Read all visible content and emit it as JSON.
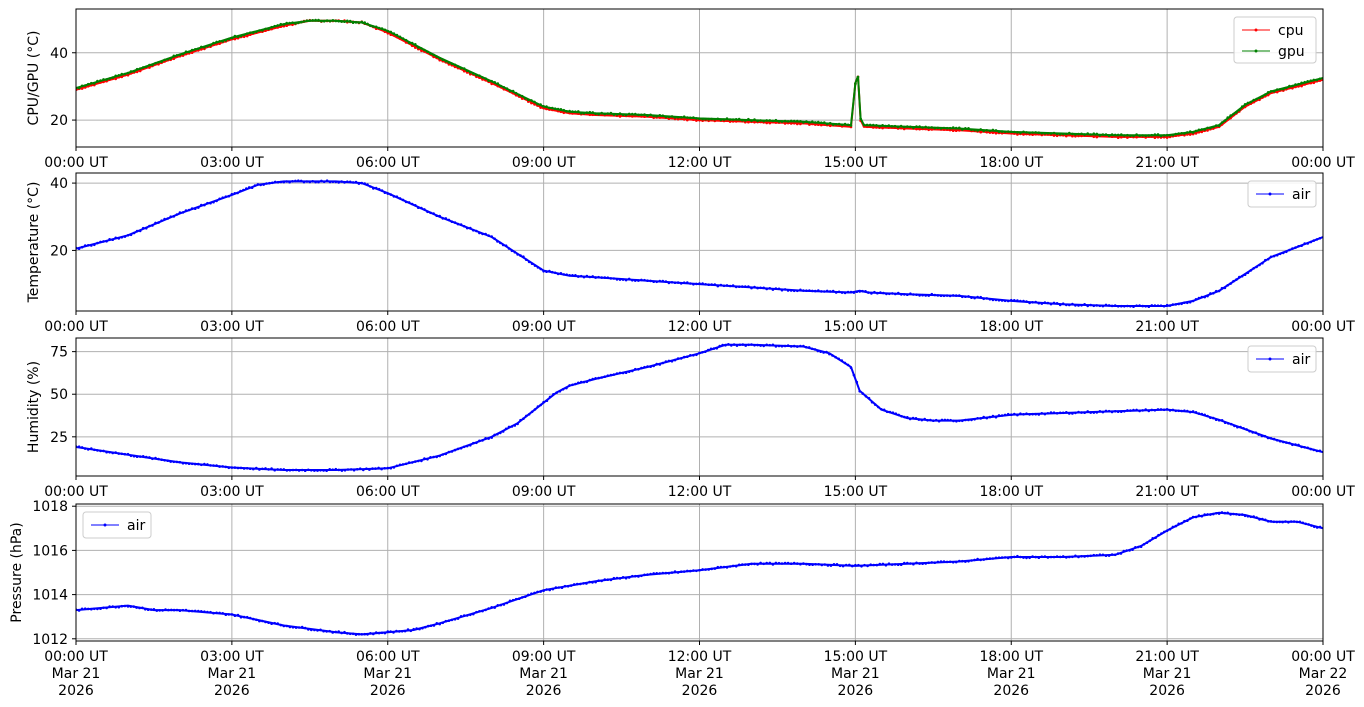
{
  "chart_data": [
    {
      "type": "line",
      "ylabel": "CPU/GPU (°C)",
      "ylim": [
        12,
        53
      ],
      "yticks": [
        20,
        40
      ],
      "grid": true,
      "legend_position": "top-right",
      "xlim": [
        "00:00",
        "24:00"
      ],
      "xtick_labels": [
        "00:00 UT",
        "03:00 UT",
        "06:00 UT",
        "09:00 UT",
        "12:00 UT",
        "15:00 UT",
        "18:00 UT",
        "21:00 UT",
        "00:00 UT"
      ],
      "series": [
        {
          "name": "cpu",
          "color": "#ff0000",
          "x": [
            "00:00",
            "01:00",
            "02:00",
            "03:00",
            "04:00",
            "04:30",
            "05:00",
            "05:30",
            "06:00",
            "07:00",
            "08:00",
            "09:00",
            "09:30",
            "10:00",
            "11:00",
            "12:00",
            "13:00",
            "14:00",
            "14:55",
            "15:00",
            "15:03",
            "15:06",
            "15:10",
            "16:00",
            "17:00",
            "18:00",
            "19:00",
            "20:00",
            "21:00",
            "21:30",
            "22:00",
            "22:30",
            "23:00",
            "24:00"
          ],
          "y": [
            29,
            33.5,
            39,
            44,
            48,
            49.5,
            49.5,
            49,
            46,
            38,
            31,
            23.5,
            22,
            21.5,
            21,
            20,
            19.5,
            19,
            18,
            31,
            33,
            20,
            18,
            17.5,
            17,
            16,
            15.5,
            15,
            15,
            16,
            18,
            24,
            28,
            32
          ]
        },
        {
          "name": "gpu",
          "color": "#008000",
          "x": [
            "00:00",
            "01:00",
            "02:00",
            "03:00",
            "04:00",
            "04:30",
            "05:00",
            "05:30",
            "06:00",
            "07:00",
            "08:00",
            "09:00",
            "09:30",
            "10:00",
            "11:00",
            "12:00",
            "13:00",
            "14:00",
            "14:55",
            "15:00",
            "15:03",
            "15:06",
            "15:10",
            "16:00",
            "17:00",
            "18:00",
            "19:00",
            "20:00",
            "21:00",
            "21:30",
            "22:00",
            "22:30",
            "23:00",
            "24:00"
          ],
          "y": [
            29.5,
            34,
            39.5,
            44.5,
            48.5,
            49.5,
            49.5,
            49,
            46.5,
            38.5,
            31.5,
            24,
            22.5,
            22,
            21.5,
            20.5,
            20,
            19.5,
            18.5,
            31,
            33,
            20.5,
            18.5,
            18,
            17.5,
            16.5,
            16,
            15.5,
            15.5,
            16.5,
            18.5,
            24.5,
            28.5,
            32.5
          ]
        }
      ]
    },
    {
      "type": "line",
      "ylabel": "Temperature (°C)",
      "ylim": [
        2,
        43
      ],
      "yticks": [
        20,
        40
      ],
      "grid": true,
      "legend_position": "top-right",
      "xlim": [
        "00:00",
        "24:00"
      ],
      "xtick_labels": [
        "00:00 UT",
        "03:00 UT",
        "06:00 UT",
        "09:00 UT",
        "12:00 UT",
        "15:00 UT",
        "18:00 UT",
        "21:00 UT",
        "00:00 UT"
      ],
      "series": [
        {
          "name": "air",
          "color": "#0000ff",
          "x": [
            "00:00",
            "01:00",
            "02:00",
            "03:00",
            "03:30",
            "04:00",
            "04:30",
            "05:00",
            "05:30",
            "06:00",
            "07:00",
            "08:00",
            "08:30",
            "09:00",
            "09:30",
            "10:00",
            "11:00",
            "12:00",
            "13:00",
            "14:00",
            "14:55",
            "15:05",
            "15:15",
            "16:00",
            "17:00",
            "18:00",
            "19:00",
            "20:00",
            "21:00",
            "21:30",
            "22:00",
            "22:30",
            "23:00",
            "24:00"
          ],
          "y": [
            20.5,
            24.5,
            31,
            36.5,
            39.5,
            40.5,
            40.5,
            40.5,
            40,
            37,
            30,
            24,
            19,
            14,
            12.5,
            12,
            11,
            10,
            9,
            8,
            7.5,
            8,
            7.5,
            7,
            6.5,
            5,
            4,
            3.5,
            3.5,
            5,
            8,
            13,
            18,
            24
          ]
        }
      ]
    },
    {
      "type": "line",
      "ylabel": "Humidity (%)",
      "ylim": [
        2,
        83
      ],
      "yticks": [
        25,
        50,
        75
      ],
      "grid": true,
      "legend_position": "top-right",
      "xlim": [
        "00:00",
        "24:00"
      ],
      "xtick_labels": [
        "00:00 UT",
        "03:00 UT",
        "06:00 UT",
        "09:00 UT",
        "12:00 UT",
        "15:00 UT",
        "18:00 UT",
        "21:00 UT",
        "00:00 UT"
      ],
      "series": [
        {
          "name": "air",
          "color": "#0000ff",
          "x": [
            "00:00",
            "01:00",
            "02:00",
            "03:00",
            "04:00",
            "05:00",
            "06:00",
            "07:00",
            "08:00",
            "08:30",
            "09:00",
            "09:15",
            "09:30",
            "10:00",
            "11:00",
            "12:00",
            "12:30",
            "13:00",
            "14:00",
            "14:30",
            "14:55",
            "15:05",
            "15:30",
            "16:00",
            "16:30",
            "17:00",
            "18:00",
            "19:00",
            "20:00",
            "21:00",
            "21:30",
            "22:00",
            "23:00",
            "24:00"
          ],
          "y": [
            19,
            14.5,
            10,
            7,
            5.5,
            5.5,
            6.5,
            14,
            25,
            33,
            45,
            51,
            55,
            59,
            66,
            74,
            79,
            79,
            78,
            74,
            66,
            52,
            41,
            36,
            34.5,
            34.5,
            38,
            39,
            40,
            41,
            39.5,
            35,
            24,
            16
          ]
        }
      ]
    },
    {
      "type": "line",
      "ylabel": "Pressure (hPa)",
      "ylim": [
        1011.9,
        1018.1
      ],
      "yticks": [
        1012,
        1014,
        1016,
        1018
      ],
      "grid": true,
      "legend_position": "top-left",
      "xlim": [
        "2026-03-21 00:00",
        "2026-03-22 00:00"
      ],
      "xtick_labels": [
        [
          "00:00 UT",
          "Mar 21",
          "2026"
        ],
        [
          "03:00 UT",
          "Mar 21",
          "2026"
        ],
        [
          "06:00 UT",
          "Mar 21",
          "2026"
        ],
        [
          "09:00 UT",
          "Mar 21",
          "2026"
        ],
        [
          "12:00 UT",
          "Mar 21",
          "2026"
        ],
        [
          "15:00 UT",
          "Mar 21",
          "2026"
        ],
        [
          "18:00 UT",
          "Mar 21",
          "2026"
        ],
        [
          "21:00 UT",
          "Mar 21",
          "2026"
        ],
        [
          "00:00 UT",
          "Mar 22",
          "2026"
        ]
      ],
      "series": [
        {
          "name": "air",
          "color": "#0000ff",
          "x": [
            "00:00",
            "01:00",
            "01:30",
            "02:00",
            "03:00",
            "04:00",
            "05:00",
            "05:30",
            "06:00",
            "06:30",
            "07:00",
            "08:00",
            "09:00",
            "10:00",
            "11:00",
            "12:00",
            "13:00",
            "14:00",
            "15:00",
            "16:00",
            "17:00",
            "18:00",
            "19:00",
            "20:00",
            "20:30",
            "21:00",
            "21:30",
            "22:00",
            "22:30",
            "23:00",
            "23:30",
            "24:00"
          ],
          "y": [
            1013.3,
            1013.5,
            1013.3,
            1013.3,
            1013.1,
            1012.6,
            1012.3,
            1012.2,
            1012.3,
            1012.4,
            1012.7,
            1013.4,
            1014.2,
            1014.6,
            1014.9,
            1015.1,
            1015.4,
            1015.4,
            1015.3,
            1015.4,
            1015.5,
            1015.7,
            1015.7,
            1015.8,
            1016.2,
            1016.9,
            1017.5,
            1017.7,
            1017.6,
            1017.3,
            1017.3,
            1017.0
          ]
        }
      ]
    }
  ]
}
